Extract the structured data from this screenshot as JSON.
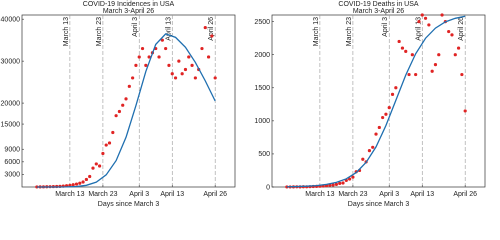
{
  "chart_data": [
    {
      "type": "scatter",
      "title": "COVID-19 Incidences in USA",
      "subtitle": "March 3-April 26",
      "xlabel": "Days since March 3",
      "xlim": [
        -4.5,
        60
      ],
      "ylim": [
        0,
        41000
      ],
      "xticks": [
        {
          "value": 10,
          "label": "March 13"
        },
        {
          "value": 20,
          "label": "March 23"
        },
        {
          "value": 31,
          "label": "April 3"
        },
        {
          "value": 41,
          "label": "April 13"
        },
        {
          "value": 54,
          "label": "April 26"
        }
      ],
      "yticks": [
        3000,
        6000,
        9000,
        15000,
        20000,
        30000,
        40000
      ],
      "xgrid": "dashed",
      "series": [
        {
          "mark": "dot",
          "color": "#e02424",
          "x": [
            0,
            1,
            2,
            3,
            4,
            5,
            6,
            7,
            8,
            9,
            10,
            11,
            12,
            13,
            14,
            15,
            16,
            17,
            18,
            19,
            20,
            21,
            22,
            23,
            24,
            25,
            26,
            27,
            28,
            29,
            30,
            31,
            32,
            33,
            34,
            35,
            36,
            37,
            38,
            39,
            40,
            41,
            42,
            43,
            44,
            45,
            46,
            47,
            48,
            49,
            50,
            51,
            52,
            53,
            54
          ],
          "values": [
            20,
            30,
            40,
            60,
            80,
            100,
            120,
            150,
            200,
            300,
            400,
            550,
            700,
            900,
            1200,
            1800,
            2500,
            4500,
            5500,
            5000,
            8000,
            10000,
            10500,
            13000,
            17000,
            18000,
            19500,
            21000,
            24000,
            26000,
            29000,
            31000,
            33000,
            29000,
            31000,
            32000,
            33000,
            31000,
            35000,
            33000,
            29000,
            27000,
            26000,
            30000,
            27000,
            28000,
            31000,
            29000,
            26000,
            28000,
            33000,
            38000,
            31000,
            36000,
            26000
          ]
        },
        {
          "mark": "line",
          "color": "#1f6fb0",
          "x": [
            0,
            3,
            6,
            9,
            12,
            15,
            18,
            21,
            24,
            27,
            30,
            33,
            36,
            39,
            42,
            45,
            48,
            51,
            54
          ],
          "values": [
            0,
            0,
            7,
            32,
            123,
            405,
            1165,
            2900,
            6290,
            11850,
            19400,
            27550,
            34000,
            36500,
            35670,
            33300,
            29700,
            25300,
            20500
          ]
        }
      ]
    },
    {
      "type": "scatter",
      "title": "COVID-19 Deaths in USA",
      "subtitle": "March 3-April 26",
      "xlabel": "Days since March 3",
      "xlim": [
        -4.5,
        60
      ],
      "ylim": [
        0,
        2600
      ],
      "xticks": [
        {
          "value": 10,
          "label": "March 13"
        },
        {
          "value": 20,
          "label": "March 23"
        },
        {
          "value": 31,
          "label": "April 3"
        },
        {
          "value": 41,
          "label": "April 13"
        },
        {
          "value": 54,
          "label": "April 26"
        }
      ],
      "yticks": [
        0,
        500,
        1000,
        1500,
        2000,
        2500
      ],
      "xgrid": "dashed",
      "series": [
        {
          "mark": "dot",
          "color": "#e02424",
          "x": [
            0,
            1,
            2,
            3,
            4,
            5,
            6,
            7,
            8,
            9,
            10,
            11,
            12,
            13,
            14,
            15,
            16,
            17,
            18,
            19,
            20,
            21,
            22,
            23,
            24,
            25,
            26,
            27,
            28,
            29,
            30,
            31,
            32,
            33,
            34,
            35,
            36,
            37,
            38,
            39,
            40,
            41,
            42,
            43,
            44,
            45,
            46,
            47,
            48,
            49,
            50,
            51,
            52,
            53,
            54
          ],
          "values": [
            1,
            1,
            2,
            3,
            2,
            4,
            3,
            5,
            8,
            10,
            12,
            15,
            20,
            25,
            30,
            40,
            55,
            60,
            100,
            120,
            150,
            230,
            250,
            420,
            380,
            550,
            600,
            800,
            900,
            1050,
            1100,
            1200,
            1400,
            1500,
            2200,
            2100,
            2050,
            1700,
            2000,
            1700,
            2500,
            2600,
            2550,
            2450,
            1750,
            1850,
            2000,
            2600,
            2500,
            2350,
            2300,
            2000,
            2100,
            1700,
            1150
          ]
        },
        {
          "mark": "line",
          "color": "#1f6fb0",
          "x": [
            0,
            3,
            6,
            9,
            12,
            15,
            18,
            21,
            24,
            27,
            30,
            33,
            36,
            39,
            42,
            45,
            48,
            51,
            54
          ],
          "values": [
            4,
            7,
            12,
            21,
            39,
            70,
            124,
            218,
            372,
            606,
            929,
            1310,
            1691,
            2014,
            2249,
            2402,
            2496,
            2550,
            2581
          ]
        }
      ]
    }
  ]
}
